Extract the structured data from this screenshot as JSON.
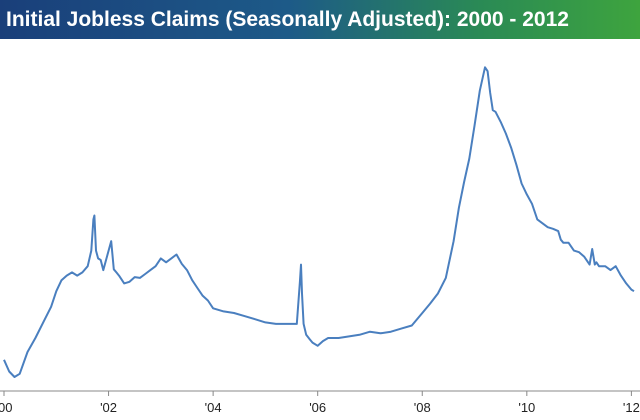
{
  "colors": {
    "line": "#4a7fbf",
    "axis": "#888888",
    "title_text": "#ffffff"
  },
  "chart_data": {
    "type": "line",
    "title": "Initial Jobless Claims (Seasonally Adjusted): 2000 - 2012",
    "xlabel": "",
    "ylabel": "",
    "xlim": [
      2000.0,
      2012.05
    ],
    "ylim": [
      250,
      700
    ],
    "x_tick_labels": [
      {
        "x": 2000,
        "label": "'00"
      },
      {
        "x": 2002,
        "label": "'02"
      },
      {
        "x": 2004,
        "label": "'04"
      },
      {
        "x": 2006,
        "label": "'06"
      },
      {
        "x": 2008,
        "label": "'08"
      },
      {
        "x": 2010,
        "label": "'10"
      },
      {
        "x": 2012,
        "label": "'12"
      }
    ],
    "grid": false,
    "legend": "none",
    "series": [
      {
        "x": [
          2000.0,
          2000.1,
          2000.2,
          2000.3,
          2000.45,
          2000.6,
          2000.75,
          2000.9,
          2001.0,
          2001.1,
          2001.2,
          2001.3,
          2001.4,
          2001.5,
          2001.6,
          2001.67,
          2001.71,
          2001.73,
          2001.76,
          2001.8,
          2001.85,
          2001.9,
          2002.0,
          2002.05,
          2002.1,
          2002.15,
          2002.2,
          2002.3,
          2002.4,
          2002.5,
          2002.6,
          2002.7,
          2002.8,
          2002.9,
          2003.0,
          2003.1,
          2003.2,
          2003.3,
          2003.4,
          2003.5,
          2003.6,
          2003.7,
          2003.8,
          2003.9,
          2004.0,
          2004.2,
          2004.4,
          2004.6,
          2004.8,
          2005.0,
          2005.2,
          2005.4,
          2005.6,
          2005.66,
          2005.68,
          2005.7,
          2005.73,
          2005.78,
          2005.85,
          2005.9,
          2006.0,
          2006.1,
          2006.2,
          2006.4,
          2006.6,
          2006.8,
          2007.0,
          2007.2,
          2007.4,
          2007.6,
          2007.8,
          2008.0,
          2008.15,
          2008.3,
          2008.45,
          2008.6,
          2008.7,
          2008.8,
          2008.9,
          2009.0,
          2009.1,
          2009.2,
          2009.25,
          2009.3,
          2009.35,
          2009.4,
          2009.5,
          2009.6,
          2009.7,
          2009.8,
          2009.9,
          2010.0,
          2010.1,
          2010.2,
          2010.3,
          2010.4,
          2010.5,
          2010.6,
          2010.65,
          2010.7,
          2010.8,
          2010.9,
          2011.0,
          2011.1,
          2011.2,
          2011.25,
          2011.3,
          2011.33,
          2011.38,
          2011.5,
          2011.6,
          2011.7,
          2011.8,
          2011.9,
          2012.0,
          2012.05
        ],
        "y": [
          290,
          275,
          268,
          272,
          300,
          318,
          338,
          358,
          378,
          392,
          398,
          402,
          398,
          402,
          410,
          430,
          470,
          475,
          430,
          420,
          418,
          405,
          430,
          442,
          406,
          402,
          398,
          388,
          390,
          396,
          395,
          400,
          405,
          410,
          420,
          415,
          420,
          425,
          413,
          405,
          392,
          382,
          372,
          366,
          356,
          352,
          350,
          346,
          342,
          338,
          336,
          336,
          336,
          390,
          412,
          375,
          336,
          322,
          316,
          312,
          308,
          314,
          318,
          318,
          320,
          322,
          326,
          324,
          326,
          330,
          334,
          350,
          362,
          375,
          395,
          442,
          485,
          518,
          548,
          590,
          635,
          665,
          660,
          632,
          610,
          608,
          595,
          580,
          562,
          540,
          516,
          502,
          490,
          470,
          465,
          460,
          458,
          455,
          444,
          440,
          440,
          430,
          428,
          422,
          412,
          432,
          412,
          415,
          410,
          410,
          405,
          410,
          398,
          388,
          380,
          378
        ]
      }
    ]
  }
}
